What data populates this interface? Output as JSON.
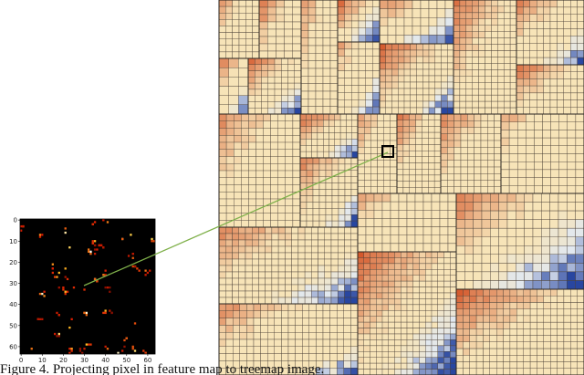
{
  "figure": {
    "caption": "Figure 4. Projecting pixel in feature map to treemap image.",
    "feature_map": {
      "xlim": [
        -0.5,
        63.5
      ],
      "ylim": [
        -0.5,
        63.5
      ],
      "xticks": [
        0,
        10,
        20,
        30,
        40,
        50,
        60
      ],
      "yticks": [
        0,
        10,
        20,
        30,
        40,
        50,
        60
      ]
    }
  }
}
